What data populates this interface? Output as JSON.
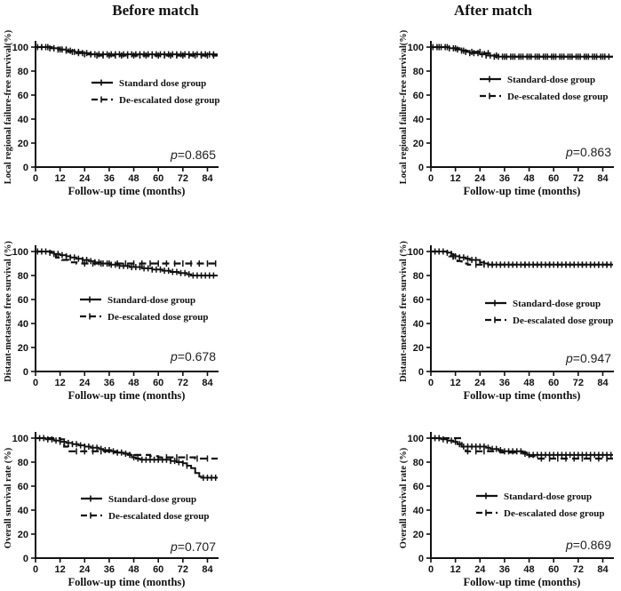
{
  "figure": {
    "column_titles": [
      "Before match",
      "After match"
    ],
    "colors": {
      "line": "#111111",
      "text": "#111111",
      "background": "#ffffff"
    }
  },
  "chart_data": [
    {
      "type": "line",
      "name": "before-local-regional-failure-free-survival",
      "column": "Before match",
      "ylabel": "Local regional failure-free survival(%)",
      "xlabel": "Follow-up time (months)",
      "p_label": {
        "symbol": "p",
        "rest": "=0.865"
      },
      "xlim": [
        0,
        89
      ],
      "ylim": [
        0,
        100
      ],
      "xticks": [
        0,
        12,
        24,
        36,
        48,
        60,
        72,
        84
      ],
      "yticks": [
        0,
        20,
        40,
        60,
        80,
        100
      ],
      "legend_position": "inside",
      "grid": false,
      "series": [
        {
          "name": "Standard dose group",
          "style": "solid",
          "points": [
            [
              0,
              100
            ],
            [
              5,
              100
            ],
            [
              7,
              99
            ],
            [
              11,
              98
            ],
            [
              15,
              97
            ],
            [
              19,
              96
            ],
            [
              23,
              95
            ],
            [
              27,
              94
            ],
            [
              89,
              94
            ]
          ],
          "censors": [
            [
              1,
              88,
              2
            ]
          ]
        },
        {
          "name": "De-escalated dose group",
          "style": "dashed",
          "points": [
            [
              0,
              100
            ],
            [
              8,
              99
            ],
            [
              12,
              98
            ],
            [
              16,
              96
            ],
            [
              20,
              95
            ],
            [
              24,
              94
            ],
            [
              28,
              93
            ],
            [
              89,
              93
            ]
          ],
          "censors": [
            [
              3,
              87,
              3
            ]
          ]
        }
      ]
    },
    {
      "type": "line",
      "name": "after-local-regional-failure-free-survival",
      "column": "After match",
      "ylabel": "Local regional failure-free survival(%)",
      "xlabel": "Follow-up time (months)",
      "p_label": {
        "symbol": "p",
        "rest": "=0.863"
      },
      "xlim": [
        0,
        89
      ],
      "ylim": [
        0,
        100
      ],
      "xticks": [
        0,
        12,
        24,
        36,
        48,
        60,
        72,
        84
      ],
      "yticks": [
        0,
        20,
        40,
        60,
        80,
        100
      ],
      "legend_position": "inside",
      "grid": false,
      "series": [
        {
          "name": "Standard-dose group",
          "style": "solid",
          "points": [
            [
              0,
              100
            ],
            [
              7,
              100
            ],
            [
              9,
              99
            ],
            [
              12,
              98
            ],
            [
              15,
              97
            ],
            [
              17,
              96
            ],
            [
              19,
              95
            ],
            [
              24,
              94
            ],
            [
              27,
              93
            ],
            [
              31,
              92
            ],
            [
              89,
              92
            ]
          ],
          "censors": [
            [
              1,
              87,
              2
            ]
          ]
        },
        {
          "name": "De-escalated dose group",
          "style": "dashed",
          "points": [
            [
              0,
              100
            ],
            [
              10,
              99
            ],
            [
              14,
              97
            ],
            [
              18,
              96
            ],
            [
              26,
              95
            ],
            [
              30,
              93
            ],
            [
              33,
              92
            ],
            [
              89,
              92
            ]
          ],
          "censors": [
            [
              4,
              86,
              4
            ]
          ]
        }
      ]
    },
    {
      "type": "line",
      "name": "before-distant-metastase-free-survival",
      "column": "Before match",
      "ylabel": "Distant-metastase free survival (%)",
      "xlabel": "Follow-up time (months)",
      "p_label": {
        "symbol": "p",
        "rest": "=0.678"
      },
      "xlim": [
        0,
        89
      ],
      "ylim": [
        0,
        100
      ],
      "xticks": [
        0,
        12,
        24,
        36,
        48,
        60,
        72,
        84
      ],
      "yticks": [
        0,
        20,
        40,
        60,
        80,
        100
      ],
      "legend_position": "inside",
      "grid": false,
      "series": [
        {
          "name": "Standard-dose group",
          "style": "solid",
          "points": [
            [
              0,
              100
            ],
            [
              4,
              100
            ],
            [
              7,
              99
            ],
            [
              9,
              98
            ],
            [
              12,
              97
            ],
            [
              15,
              96
            ],
            [
              17,
              95
            ],
            [
              20,
              94
            ],
            [
              23,
              93
            ],
            [
              26,
              92
            ],
            [
              29,
              91
            ],
            [
              32,
              90
            ],
            [
              36,
              89
            ],
            [
              41,
              88
            ],
            [
              46,
              87
            ],
            [
              52,
              86
            ],
            [
              57,
              85
            ],
            [
              62,
              84
            ],
            [
              66,
              83
            ],
            [
              70,
              82
            ],
            [
              74,
              81
            ],
            [
              76,
              80
            ],
            [
              89,
              80
            ]
          ],
          "censors": [
            [
              1,
              88,
              2
            ]
          ]
        },
        {
          "name": "De-escalated dose group",
          "style": "dashed",
          "points": [
            [
              0,
              100
            ],
            [
              8,
              97
            ],
            [
              10,
              95
            ],
            [
              13,
              93
            ],
            [
              16,
              91
            ],
            [
              20,
              90
            ],
            [
              89,
              90
            ]
          ],
          "censors": [
            [
              24,
              88,
              4
            ]
          ]
        }
      ]
    },
    {
      "type": "line",
      "name": "after-distant-metastase-free-survival",
      "column": "After match",
      "ylabel": "Distant-metastase free survival (%)",
      "xlabel": "Follow-up time (months)",
      "p_label": {
        "symbol": "p",
        "rest": "=0.947"
      },
      "xlim": [
        0,
        89
      ],
      "ylim": [
        0,
        100
      ],
      "xticks": [
        0,
        12,
        24,
        36,
        48,
        60,
        72,
        84
      ],
      "yticks": [
        0,
        20,
        40,
        60,
        80,
        100
      ],
      "legend_position": "inside",
      "grid": false,
      "series": [
        {
          "name": "Standard-dose group",
          "style": "solid",
          "points": [
            [
              0,
              100
            ],
            [
              7,
              100
            ],
            [
              8,
              99
            ],
            [
              10,
              98
            ],
            [
              11,
              97
            ],
            [
              12,
              96
            ],
            [
              14,
              95
            ],
            [
              17,
              94
            ],
            [
              19,
              93
            ],
            [
              24,
              91
            ],
            [
              26,
              90
            ],
            [
              28,
              89
            ],
            [
              89,
              89
            ]
          ],
          "censors": [
            [
              2,
              88,
              2
            ]
          ]
        },
        {
          "name": "De-escalated dose group",
          "style": "dashed",
          "points": [
            [
              0,
              100
            ],
            [
              8,
              99
            ],
            [
              9,
              96
            ],
            [
              11,
              94
            ],
            [
              13,
              92
            ],
            [
              15,
              90
            ],
            [
              18,
              89
            ],
            [
              89,
              89
            ]
          ],
          "censors": [
            [
              22,
              86,
              4
            ]
          ]
        }
      ]
    },
    {
      "type": "line",
      "name": "before-overall-survival-rate",
      "column": "Before match",
      "ylabel": "Overall survival rate (%)",
      "xlabel": "Follow-up time (months)",
      "p_label": {
        "symbol": "p",
        "rest": "=0.707"
      },
      "xlim": [
        0,
        89
      ],
      "ylim": [
        0,
        100
      ],
      "xticks": [
        0,
        12,
        24,
        36,
        48,
        60,
        72,
        84
      ],
      "yticks": [
        0,
        20,
        40,
        60,
        80,
        100
      ],
      "legend_position": "inside",
      "grid": false,
      "series": [
        {
          "name": "Standard-dose group",
          "style": "solid",
          "points": [
            [
              0,
              100
            ],
            [
              5,
              99
            ],
            [
              9,
              98
            ],
            [
              12,
              97
            ],
            [
              15,
              96
            ],
            [
              18,
              95
            ],
            [
              21,
              94
            ],
            [
              24,
              93
            ],
            [
              27,
              92
            ],
            [
              31,
              91
            ],
            [
              33,
              90
            ],
            [
              37,
              89
            ],
            [
              40,
              88
            ],
            [
              43,
              87
            ],
            [
              45,
              86
            ],
            [
              47,
              84
            ],
            [
              49,
              83
            ],
            [
              51,
              82
            ],
            [
              63,
              82
            ],
            [
              66,
              81
            ],
            [
              69,
              80
            ],
            [
              72,
              79
            ],
            [
              74,
              77
            ],
            [
              76,
              75
            ],
            [
              78,
              71
            ],
            [
              80,
              68
            ],
            [
              81,
              67
            ],
            [
              89,
              67
            ]
          ],
          "censors": [
            [
              2,
              74,
              2
            ],
            [
              82,
              88,
              2
            ]
          ]
        },
        {
          "name": "De-escalated dose group",
          "style": "dashed",
          "points": [
            [
              0,
              100
            ],
            [
              12,
              99
            ],
            [
              14,
              93
            ],
            [
              16,
              89
            ],
            [
              33,
              89
            ],
            [
              36,
              88
            ],
            [
              44,
              87
            ],
            [
              48,
              86
            ],
            [
              56,
              85
            ],
            [
              60,
              84
            ],
            [
              78,
              83
            ],
            [
              89,
              83
            ]
          ],
          "censors": [
            [
              20,
              32,
              4
            ],
            [
              64,
              86,
              5
            ]
          ]
        }
      ]
    },
    {
      "type": "line",
      "name": "after-overall-survival-rate",
      "column": "After match",
      "ylabel": "Overall survival rate (%)",
      "xlabel": "Follow-up time (months)",
      "p_label": {
        "symbol": "p",
        "rest": "=0.869"
      },
      "xlim": [
        0,
        89
      ],
      "ylim": [
        0,
        100
      ],
      "xticks": [
        0,
        12,
        24,
        36,
        48,
        60,
        72,
        84
      ],
      "yticks": [
        0,
        20,
        40,
        60,
        80,
        100
      ],
      "legend_position": "inside",
      "grid": false,
      "series": [
        {
          "name": "Standard-dose group",
          "style": "solid",
          "points": [
            [
              0,
              100
            ],
            [
              5,
              99
            ],
            [
              8,
              98
            ],
            [
              11,
              97
            ],
            [
              13,
              95
            ],
            [
              15,
              93
            ],
            [
              25,
              93
            ],
            [
              27,
              92
            ],
            [
              29,
              91
            ],
            [
              33,
              90
            ],
            [
              35,
              89
            ],
            [
              43,
              89
            ],
            [
              45,
              87
            ],
            [
              47,
              86
            ],
            [
              89,
              86
            ]
          ],
          "censors": [
            [
              2,
              88,
              2
            ]
          ]
        },
        {
          "name": "De-escalated dose group",
          "style": "dashed",
          "points": [
            [
              0,
              100
            ],
            [
              13,
              100
            ],
            [
              15,
              93
            ],
            [
              17,
              89
            ],
            [
              30,
              89
            ],
            [
              34,
              88
            ],
            [
              46,
              88
            ],
            [
              48,
              85
            ],
            [
              52,
              83
            ],
            [
              89,
              83
            ]
          ],
          "censors": [
            [
              18,
              28,
              4
            ],
            [
              54,
              86,
              4
            ]
          ]
        }
      ]
    }
  ]
}
